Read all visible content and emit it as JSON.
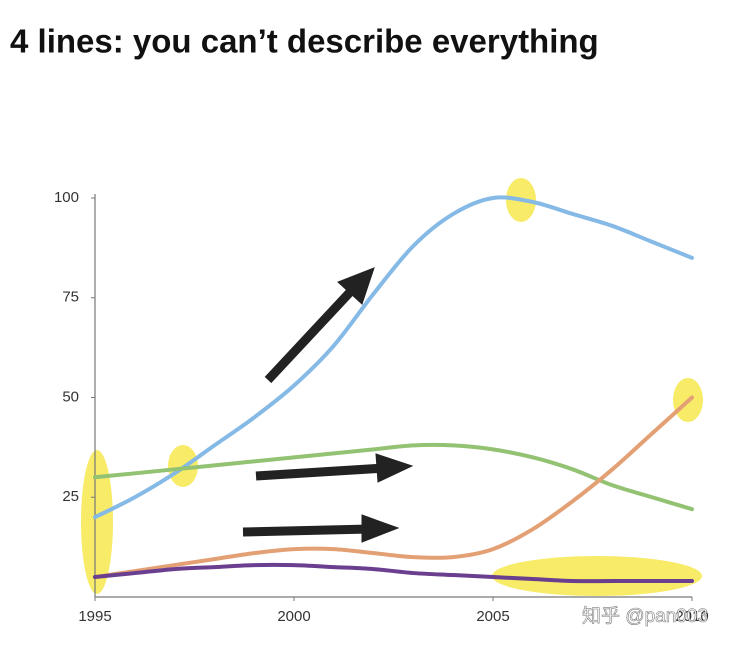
{
  "chart_data": {
    "type": "line",
    "title": "4 lines: you can’t describe everything",
    "x": [
      1995,
      1996,
      1997,
      1998,
      1999,
      2000,
      2001,
      2002,
      2003,
      2004,
      2005,
      2006,
      2007,
      2008,
      2009,
      2010
    ],
    "xlim": [
      1995,
      2010
    ],
    "xticks": [
      1995,
      2000,
      2005,
      2010
    ],
    "ylim": [
      0,
      100
    ],
    "yticks": [
      25,
      50,
      75,
      100
    ],
    "series": [
      {
        "color": "#85b9e6",
        "values": [
          20,
          25,
          31,
          38,
          45,
          53,
          63,
          76,
          88,
          96,
          100,
          99,
          96,
          93,
          89,
          85
        ]
      },
      {
        "color": "#93c273",
        "values": [
          30,
          31,
          32,
          33,
          34,
          35,
          36,
          37,
          38,
          38,
          37,
          35,
          32,
          28,
          25,
          22
        ]
      },
      {
        "color": "#e3a074",
        "values": [
          5,
          6.5,
          8,
          9.5,
          11,
          12,
          12,
          11,
          10,
          10,
          12,
          17,
          24,
          32,
          41,
          50
        ]
      },
      {
        "color": "#6b3f8f",
        "values": [
          5,
          6,
          7,
          7.5,
          8,
          8,
          7.5,
          7,
          6,
          5.5,
          5,
          4.5,
          4,
          4,
          4,
          4
        ]
      }
    ],
    "watermark": "知乎 @pan003"
  }
}
